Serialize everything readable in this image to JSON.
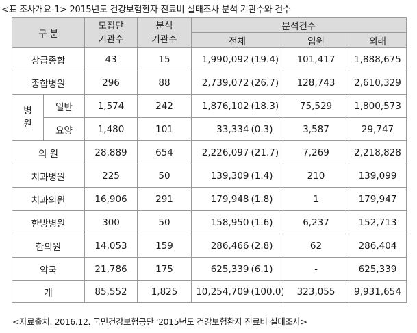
{
  "caption": "<표 조사개요-1> 2015년도 건강보험환자 진료비 실태조사 분석 기관수와 건수",
  "source": "<자료출처. 2016.12. 국민건강보험공단 '2015년도 건강보험환자 진료비 실태조사>",
  "header": {
    "category": "구 분",
    "recruited_line1": "모집단",
    "recruited_line2": "기관수",
    "analyzed_line1": "분석",
    "analyzed_line2": "기관수",
    "cases": "분석건수",
    "total": "전체",
    "inpatient": "입원",
    "outpatient": "외래"
  },
  "hospital_group": {
    "line1": "병",
    "line2": "원"
  },
  "rows": [
    {
      "label": "상급종합",
      "recruited": "43",
      "analyzed": "15",
      "total": "1,990,092",
      "pct": "(19.4)",
      "inpatient": "101,417",
      "outpatient": "1,888,675"
    },
    {
      "label": "종합병원",
      "recruited": "296",
      "analyzed": "88",
      "total": "2,739,072",
      "pct": "(26.7)",
      "inpatient": "128,743",
      "outpatient": "2,610,329"
    },
    {
      "label": "일반",
      "recruited": "1,574",
      "analyzed": "242",
      "total": "1,876,102",
      "pct": "(18.3)",
      "inpatient": "75,529",
      "outpatient": "1,800,573"
    },
    {
      "label": "요양",
      "recruited": "1,480",
      "analyzed": "101",
      "total": "33,334",
      "pct": "(0.3)",
      "inpatient": "3,587",
      "outpatient": "29,747"
    },
    {
      "label": "의 원",
      "recruited": "28,889",
      "analyzed": "654",
      "total": "2,226,097",
      "pct": "(21.7)",
      "inpatient": "7,269",
      "outpatient": "2,218,828"
    },
    {
      "label": "치과병원",
      "recruited": "225",
      "analyzed": "50",
      "total": "139,309",
      "pct": "(1.4)",
      "inpatient": "210",
      "outpatient": "139,099"
    },
    {
      "label": "치과의원",
      "recruited": "16,906",
      "analyzed": "291",
      "total": "179,948",
      "pct": "(1.8)",
      "inpatient": "1",
      "outpatient": "179,947"
    },
    {
      "label": "한방병원",
      "recruited": "300",
      "analyzed": "50",
      "total": "158,950",
      "pct": "(1.6)",
      "inpatient": "6,237",
      "outpatient": "152,713"
    },
    {
      "label": "한의원",
      "recruited": "14,053",
      "analyzed": "159",
      "total": "286,466",
      "pct": "(2.8)",
      "inpatient": "62",
      "outpatient": "286,404"
    },
    {
      "label": "약국",
      "recruited": "21,786",
      "analyzed": "175",
      "total": "625,339",
      "pct": "(6.1)",
      "inpatient": "-",
      "outpatient": "625,339"
    },
    {
      "label": "계",
      "recruited": "85,552",
      "analyzed": "1,825",
      "total": "10,254,709",
      "pct": "(100.0)",
      "inpatient": "323,055",
      "outpatient": "9,931,654"
    }
  ]
}
